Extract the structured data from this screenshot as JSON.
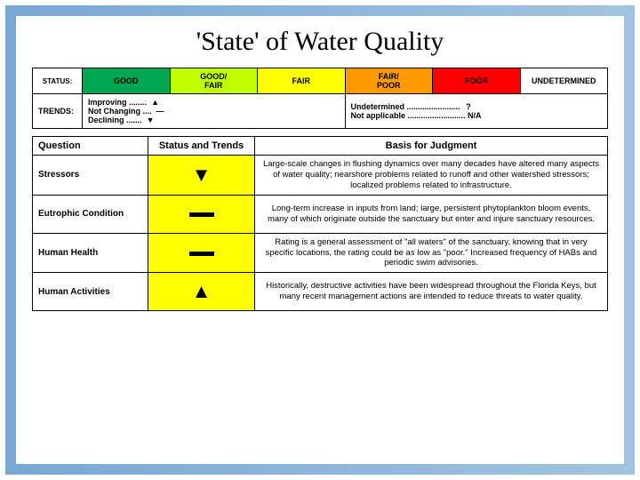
{
  "title": "'State' of Water Quality",
  "legend": {
    "status_label": "STATUS:",
    "trends_label": "TRENDS:",
    "statuses": {
      "good": "GOOD",
      "good_fair": "GOOD/\nFAIR",
      "fair": "FAIR",
      "fair_poor": "FAIR/\nPOOR",
      "poor": "POOR",
      "undetermined": "UNDETERMINED"
    },
    "trends": {
      "improving": "Improving",
      "improving_sym": "▲",
      "not_changing": "Not Changing",
      "not_changing_sym": "—",
      "declining": "Declining",
      "declining_sym": "▼",
      "undetermined": "Undetermined",
      "undetermined_sym": "?",
      "not_applicable": "Not applicable",
      "not_applicable_sym": "N/A"
    }
  },
  "headers": {
    "question": "Question",
    "status_trends": "Status and Trends",
    "basis": "Basis for Judgment"
  },
  "rows": {
    "r1": {
      "q": "Stressors",
      "sym": "▼",
      "color": "fair",
      "basis": "Large-scale changes in flushing dynamics over many decades have altered many aspects of water quality; nearshore problems related to runoff and other watershed stressors; localized problems related to infrastructure."
    },
    "r2": {
      "q": "Eutrophic Condition",
      "sym": "bar",
      "color": "fair",
      "basis": "Long-term increase in inputs from land; large, persistent phytoplankton bloom events, many of which originate outside the sanctuary but enter and injure sanctuary resources."
    },
    "r3": {
      "q": "Human Health",
      "sym": "bar",
      "color": "fair",
      "basis": "Rating is a general assessment of \"all waters\" of the sanctuary, knowing that in very specific locations, the rating could be as low as \"poor.\" Increased frequency of HABs and periodic swim advisories."
    },
    "r4": {
      "q": "Human Activities",
      "sym": "▲",
      "color": "fair",
      "basis": "Historically, destructive activities have been widespread throughout the Florida Keys, but many recent management actions are intended to reduce threats to water quality."
    }
  }
}
